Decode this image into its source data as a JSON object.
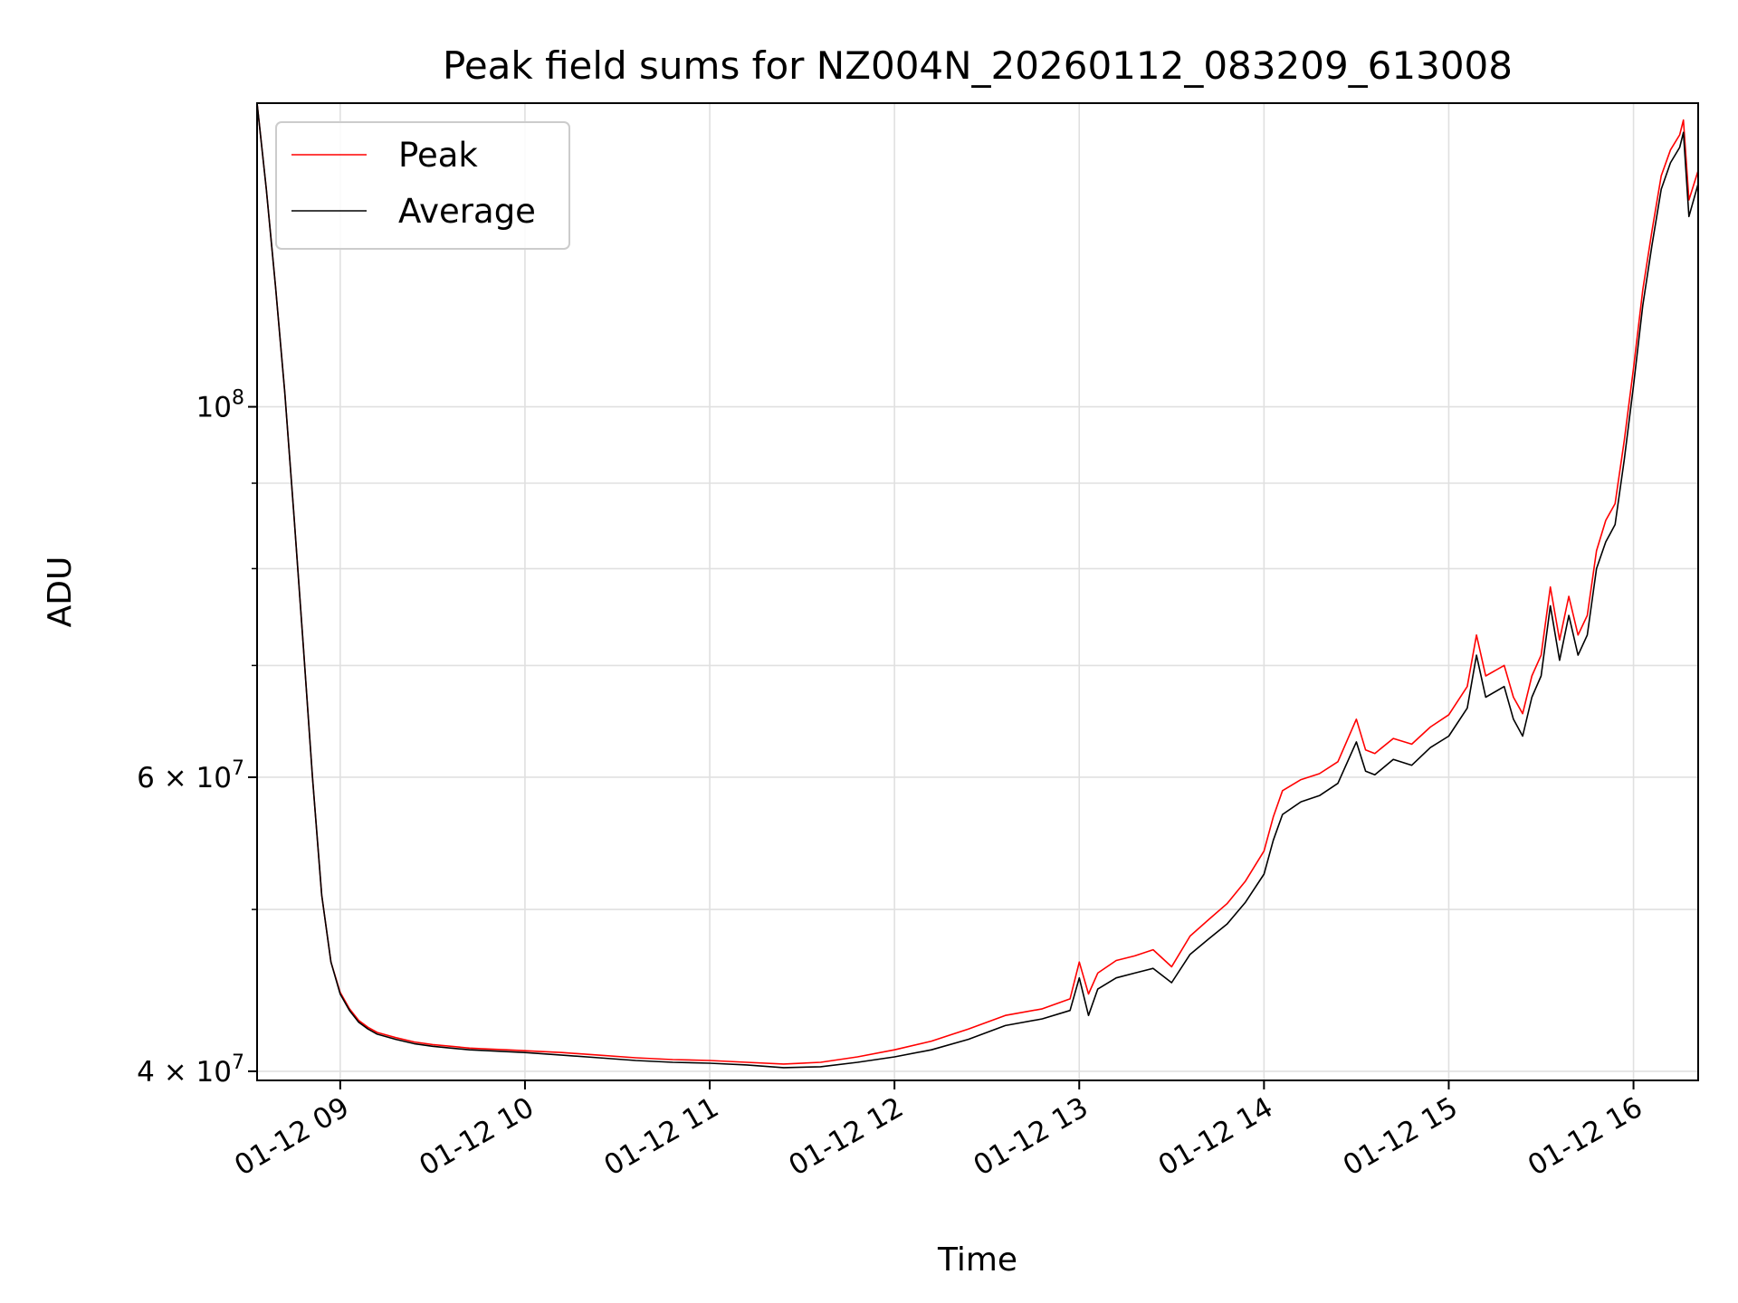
{
  "chart_data": {
    "type": "line",
    "title": "Peak field sums for NZ004N_20260112_083209_613008",
    "xlabel": "Time",
    "ylabel": "ADU",
    "yscale": "log",
    "ylim": [
      39500000,
      152000000
    ],
    "x_unit": "hours since 2026-01-12 00:00",
    "xlim": [
      8.55,
      16.35
    ],
    "x_ticks": [
      {
        "value": 9,
        "label": "01-12 09"
      },
      {
        "value": 10,
        "label": "01-12 10"
      },
      {
        "value": 11,
        "label": "01-12 11"
      },
      {
        "value": 12,
        "label": "01-12 12"
      },
      {
        "value": 13,
        "label": "01-12 13"
      },
      {
        "value": 14,
        "label": "01-12 14"
      },
      {
        "value": 15,
        "label": "01-12 15"
      },
      {
        "value": 16,
        "label": "01-12 16"
      }
    ],
    "y_ticks_major": [
      {
        "value": 40000000,
        "mantissa": "4",
        "exponent": "7"
      },
      {
        "value": 60000000,
        "mantissa": "6",
        "exponent": "7"
      },
      {
        "value": 100000000,
        "mantissa": "",
        "exponent": "8"
      }
    ],
    "y_ticks_minor": [
      50000000,
      70000000,
      80000000,
      90000000
    ],
    "grid": true,
    "legend": {
      "position": "top-left",
      "entries": [
        {
          "name": "Peak",
          "color": "#ff0000"
        },
        {
          "name": "Average",
          "color": "#000000"
        }
      ]
    },
    "series": [
      {
        "name": "Average",
        "color": "#000000",
        "x": [
          8.55,
          8.6,
          8.65,
          8.7,
          8.75,
          8.8,
          8.85,
          8.9,
          8.95,
          9.0,
          9.05,
          9.1,
          9.15,
          9.2,
          9.3,
          9.4,
          9.5,
          9.6,
          9.7,
          9.8,
          9.9,
          10.0,
          10.2,
          10.4,
          10.6,
          10.8,
          11.0,
          11.2,
          11.4,
          11.6,
          11.8,
          12.0,
          12.2,
          12.4,
          12.6,
          12.8,
          12.95,
          13.0,
          13.05,
          13.1,
          13.2,
          13.3,
          13.4,
          13.5,
          13.6,
          13.7,
          13.8,
          13.9,
          14.0,
          14.05,
          14.1,
          14.2,
          14.3,
          14.4,
          14.5,
          14.55,
          14.6,
          14.7,
          14.8,
          14.9,
          15.0,
          15.1,
          15.15,
          15.2,
          15.3,
          15.35,
          15.4,
          15.45,
          15.5,
          15.55,
          15.6,
          15.65,
          15.7,
          15.75,
          15.8,
          15.85,
          15.9,
          15.95,
          16.0,
          16.05,
          16.1,
          16.15,
          16.2,
          16.25,
          16.27,
          16.3,
          16.35
        ],
        "y": [
          152000000,
          135000000,
          118000000,
          102000000,
          86000000,
          72000000,
          60000000,
          51000000,
          46500000,
          44500000,
          43500000,
          42800000,
          42400000,
          42100000,
          41800000,
          41550000,
          41400000,
          41300000,
          41200000,
          41150000,
          41100000,
          41050000,
          40900000,
          40750000,
          40600000,
          40500000,
          40450000,
          40350000,
          40200000,
          40250000,
          40500000,
          40800000,
          41200000,
          41800000,
          42600000,
          43000000,
          43500000,
          45500000,
          43200000,
          44800000,
          45500000,
          45800000,
          46100000,
          45200000,
          47000000,
          48000000,
          49000000,
          50500000,
          52500000,
          55000000,
          57000000,
          58000000,
          58500000,
          59500000,
          63000000,
          60500000,
          60200000,
          61500000,
          61000000,
          62500000,
          63500000,
          66000000,
          71000000,
          67000000,
          68000000,
          65000000,
          63500000,
          67000000,
          69000000,
          76000000,
          70500000,
          75000000,
          71000000,
          73000000,
          80000000,
          83000000,
          85000000,
          93000000,
          103000000,
          115000000,
          125000000,
          135000000,
          140000000,
          143000000,
          146000000,
          130000000,
          136000000
        ]
      },
      {
        "name": "Peak",
        "color": "#ff0000",
        "x": [
          8.55,
          8.6,
          8.65,
          8.7,
          8.75,
          8.8,
          8.85,
          8.9,
          8.95,
          9.0,
          9.05,
          9.1,
          9.15,
          9.2,
          9.3,
          9.4,
          9.5,
          9.6,
          9.7,
          9.8,
          9.9,
          10.0,
          10.2,
          10.4,
          10.6,
          10.8,
          11.0,
          11.2,
          11.4,
          11.6,
          11.8,
          12.0,
          12.2,
          12.4,
          12.6,
          12.8,
          12.95,
          13.0,
          13.05,
          13.1,
          13.2,
          13.3,
          13.4,
          13.5,
          13.6,
          13.7,
          13.8,
          13.9,
          14.0,
          14.05,
          14.1,
          14.2,
          14.3,
          14.4,
          14.5,
          14.55,
          14.6,
          14.7,
          14.8,
          14.9,
          15.0,
          15.1,
          15.15,
          15.2,
          15.3,
          15.35,
          15.4,
          15.45,
          15.5,
          15.55,
          15.6,
          15.65,
          15.7,
          15.75,
          15.8,
          15.85,
          15.9,
          15.95,
          16.0,
          16.05,
          16.1,
          16.15,
          16.2,
          16.25,
          16.27,
          16.3,
          16.35
        ],
        "y": [
          152000000,
          135000000,
          118000000,
          102000000,
          86000000,
          72000000,
          60000000,
          51000000,
          46500000,
          44600000,
          43600000,
          42900000,
          42500000,
          42200000,
          41900000,
          41650000,
          41500000,
          41400000,
          41300000,
          41250000,
          41200000,
          41150000,
          41050000,
          40900000,
          40750000,
          40650000,
          40600000,
          40500000,
          40400000,
          40500000,
          40800000,
          41200000,
          41700000,
          42400000,
          43200000,
          43600000,
          44200000,
          46500000,
          44500000,
          45800000,
          46600000,
          46900000,
          47300000,
          46200000,
          48200000,
          49300000,
          50400000,
          52000000,
          54200000,
          56800000,
          58900000,
          59800000,
          60300000,
          61300000,
          65000000,
          62300000,
          62000000,
          63300000,
          62800000,
          64300000,
          65400000,
          68000000,
          73000000,
          69000000,
          70000000,
          67000000,
          65500000,
          69000000,
          71000000,
          78000000,
          72500000,
          77000000,
          73000000,
          75000000,
          82000000,
          85500000,
          87500000,
          95500000,
          105500000,
          117500000,
          127500000,
          137500000,
          142500000,
          145500000,
          148500000,
          133000000,
          138500000
        ]
      }
    ]
  }
}
